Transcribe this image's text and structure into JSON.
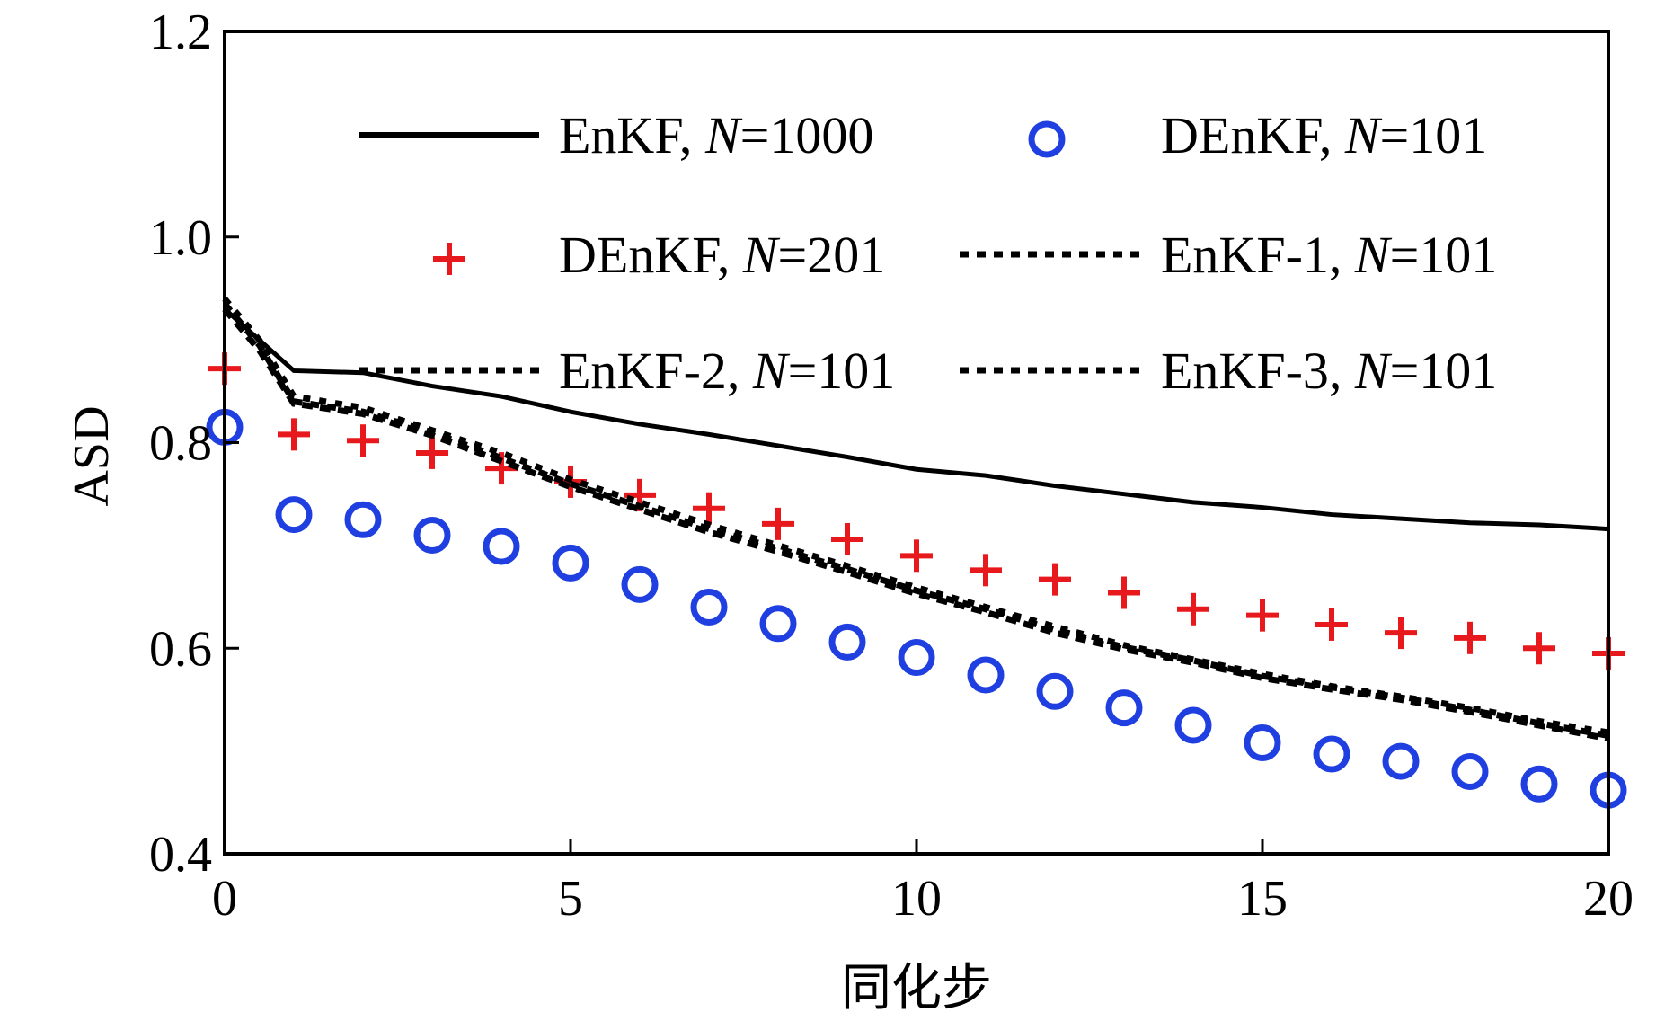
{
  "chart_data": {
    "type": "line",
    "xlabel": "同化步",
    "ylabel": "ASD",
    "xlim": [
      0,
      20
    ],
    "ylim": [
      0.4,
      1.2
    ],
    "xticks": [
      "0",
      "5",
      "10",
      "15",
      "20"
    ],
    "yticks": [
      "0.4",
      "0.6",
      "0.8",
      "1.0",
      "1.2"
    ],
    "grid": false,
    "legend_position": "top",
    "series": [
      {
        "name": "EnKF, N=1000",
        "name_prefix": "EnKF, ",
        "name_n": "N",
        "name_suffix": "=1000",
        "style": "solid",
        "color": "#000000",
        "x": [
          0,
          0.5,
          1,
          2,
          3,
          4,
          5,
          6,
          7,
          8,
          9,
          10,
          11,
          12,
          13,
          14,
          15,
          16,
          17,
          18,
          19,
          20
        ],
        "y": [
          0.93,
          0.9,
          0.87,
          0.868,
          0.855,
          0.845,
          0.83,
          0.818,
          0.808,
          0.797,
          0.786,
          0.774,
          0.768,
          0.758,
          0.75,
          0.742,
          0.737,
          0.73,
          0.726,
          0.722,
          0.72,
          0.716
        ]
      },
      {
        "name": "DEnKF, N=101",
        "name_prefix": "DEnKF, ",
        "name_n": "N",
        "name_suffix": "=101",
        "style": "circle",
        "color": "#1f3fe0",
        "x": [
          0,
          1,
          2,
          3,
          4,
          5,
          6,
          7,
          8,
          9,
          10,
          11,
          12,
          13,
          14,
          15,
          16,
          17,
          18,
          19,
          20
        ],
        "y": [
          0.815,
          0.73,
          0.725,
          0.71,
          0.699,
          0.683,
          0.662,
          0.64,
          0.624,
          0.606,
          0.591,
          0.574,
          0.558,
          0.542,
          0.525,
          0.508,
          0.497,
          0.49,
          0.48,
          0.468,
          0.462
        ]
      },
      {
        "name": "DEnKF, N=201",
        "name_prefix": "DEnKF, ",
        "name_n": "N",
        "name_suffix": "=201",
        "style": "plus",
        "color": "#e8191c",
        "x": [
          0,
          1,
          2,
          3,
          4,
          5,
          6,
          7,
          8,
          9,
          10,
          11,
          12,
          13,
          14,
          15,
          16,
          17,
          18,
          19,
          20
        ],
        "y": [
          0.872,
          0.808,
          0.802,
          0.79,
          0.775,
          0.762,
          0.749,
          0.736,
          0.721,
          0.706,
          0.69,
          0.676,
          0.667,
          0.654,
          0.638,
          0.632,
          0.623,
          0.615,
          0.61,
          0.6,
          0.595
        ]
      },
      {
        "name": "EnKF-1, N=101",
        "name_prefix": "EnKF-1, ",
        "name_n": "N",
        "name_suffix": "=101",
        "style": "dotted",
        "color": "#000000",
        "x": [
          0,
          0.5,
          1,
          2,
          3,
          4,
          5,
          6,
          7,
          8,
          9,
          10,
          11,
          12,
          13,
          14,
          15,
          16,
          17,
          18,
          19,
          20
        ],
        "y": [
          0.935,
          0.895,
          0.84,
          0.83,
          0.81,
          0.785,
          0.76,
          0.738,
          0.716,
          0.697,
          0.677,
          0.656,
          0.638,
          0.618,
          0.601,
          0.588,
          0.573,
          0.562,
          0.552,
          0.54,
          0.527,
          0.515
        ]
      },
      {
        "name": "EnKF-2, N=101",
        "name_prefix": "EnKF-2, ",
        "name_n": "N",
        "name_suffix": "=101",
        "style": "dotted",
        "color": "#000000",
        "x": [
          0,
          0.5,
          1,
          2,
          3,
          4,
          5,
          6,
          7,
          8,
          9,
          10,
          11,
          12,
          13,
          14,
          15,
          16,
          17,
          18,
          19,
          20
        ],
        "y": [
          0.94,
          0.9,
          0.845,
          0.834,
          0.812,
          0.79,
          0.764,
          0.742,
          0.72,
          0.7,
          0.68,
          0.659,
          0.64,
          0.621,
          0.603,
          0.589,
          0.575,
          0.563,
          0.553,
          0.542,
          0.529,
          0.518
        ]
      },
      {
        "name": "EnKF-3, N=101",
        "name_prefix": "EnKF-3, ",
        "name_n": "N",
        "name_suffix": "=101",
        "style": "dotted",
        "color": "#000000",
        "x": [
          0,
          0.5,
          1,
          2,
          3,
          4,
          5,
          6,
          7,
          8,
          9,
          10,
          11,
          12,
          13,
          14,
          15,
          16,
          17,
          18,
          19,
          20
        ],
        "y": [
          0.93,
          0.89,
          0.838,
          0.828,
          0.807,
          0.782,
          0.757,
          0.735,
          0.713,
          0.694,
          0.674,
          0.653,
          0.635,
          0.615,
          0.599,
          0.586,
          0.571,
          0.56,
          0.55,
          0.538,
          0.525,
          0.512
        ]
      }
    ]
  }
}
